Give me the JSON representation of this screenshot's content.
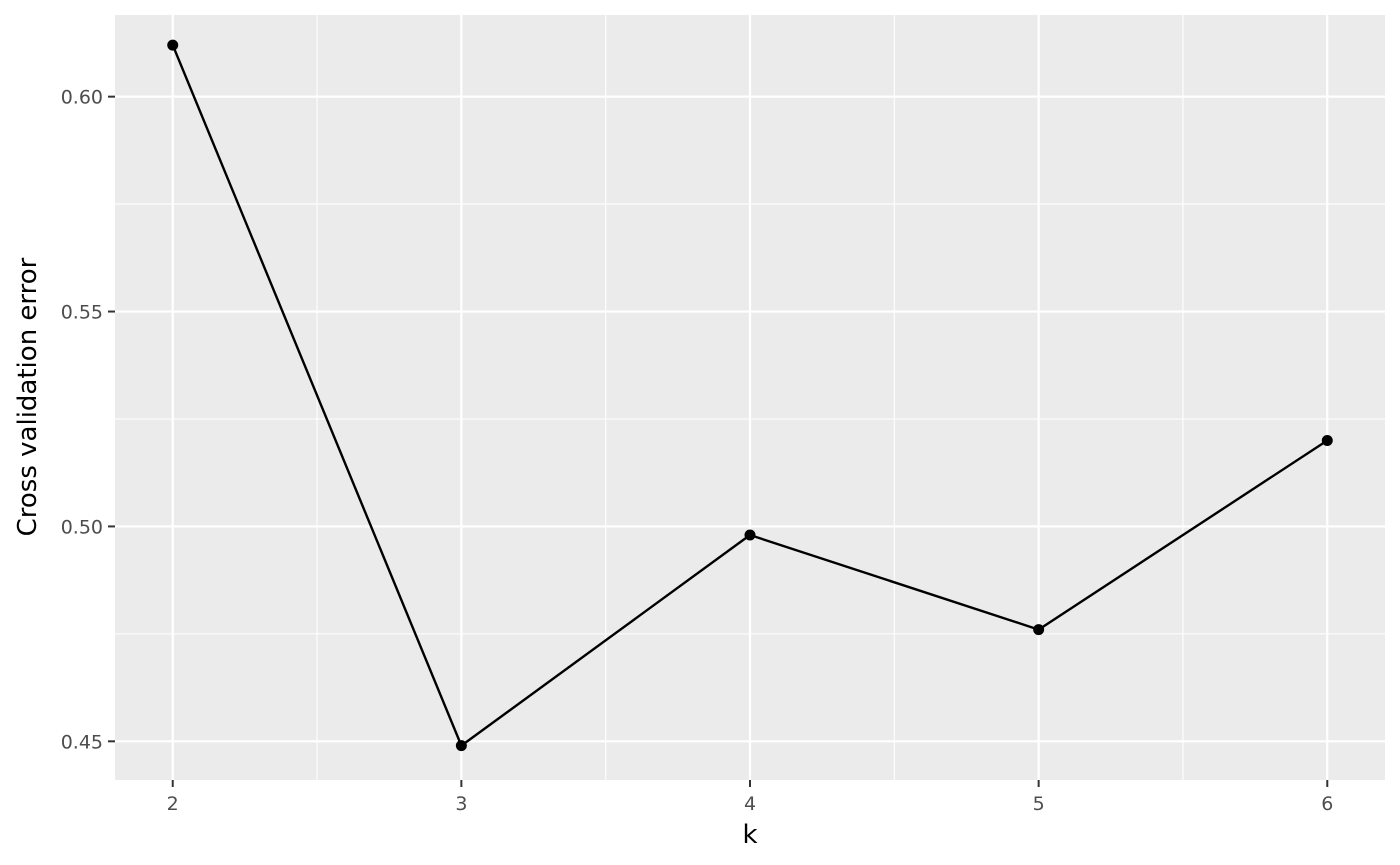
{
  "chart_data": {
    "type": "line",
    "title": "",
    "xlabel": "k",
    "ylabel": "Cross validation error",
    "x": [
      2,
      3,
      4,
      5,
      6
    ],
    "series": [
      {
        "values": [
          0.612,
          0.449,
          0.498,
          0.476,
          0.52
        ]
      }
    ],
    "xlim": [
      1.8,
      6.2
    ],
    "ylim": [
      0.441,
      0.619
    ],
    "x_ticks": [
      2,
      3,
      4,
      5,
      6
    ],
    "x_tick_labels": [
      "2",
      "3",
      "4",
      "5",
      "6"
    ],
    "x_minor_ticks": [
      2.5,
      3.5,
      4.5,
      5.5
    ],
    "y_ticks": [
      0.45,
      0.5,
      0.55,
      0.6
    ],
    "y_tick_labels": [
      "0.45",
      "0.50",
      "0.55",
      "0.60"
    ],
    "y_minor_ticks": [
      0.475,
      0.525,
      0.575
    ],
    "grid": true,
    "legend": "none",
    "colors": {
      "panel_background": "#ebebeb",
      "grid": "#ffffff",
      "line": "#000000",
      "point": "#000000",
      "tick": "#333333"
    }
  }
}
